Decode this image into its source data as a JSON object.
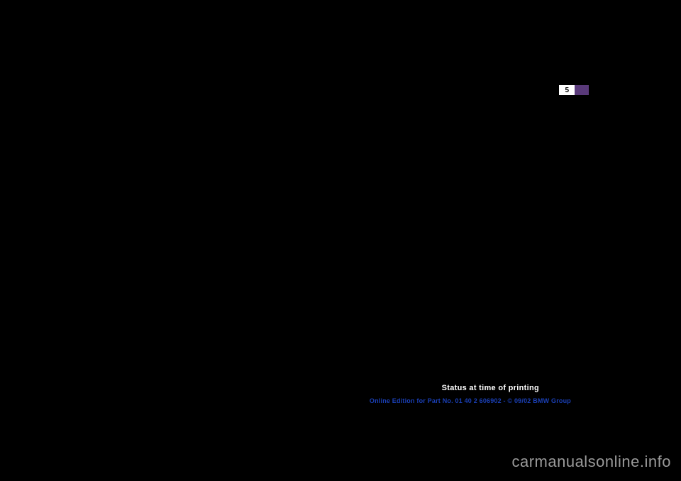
{
  "page": {
    "number": "5",
    "indicator_bg": "#ffffff",
    "indicator_text_color": "#000000",
    "accent_color": "#5a3a7a"
  },
  "footer": {
    "status_label": "Status at time of printing",
    "status_color": "#ffffff",
    "edition_label": "Online Edition for Part No. 01 40 2 606902 - © 09/02 BMW Group",
    "edition_color": "#1a3fb5"
  },
  "watermark": {
    "text": "carmanualsonline.info",
    "color": "#9a9a9a"
  },
  "background_color": "#000000"
}
